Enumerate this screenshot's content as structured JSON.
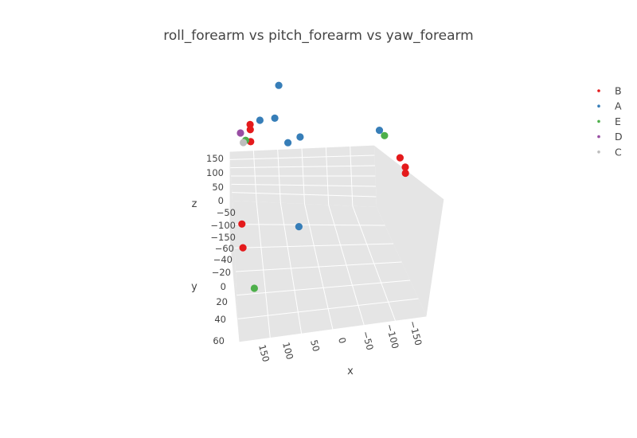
{
  "chart_data": {
    "type": "scatter3d",
    "title": "roll_forearm vs pitch_forearm vs yaw_forearm",
    "xlabel": "x",
    "ylabel": "y",
    "zlabel": "z",
    "x_ticks": [
      "150",
      "100",
      "50",
      "0",
      "−50",
      "−100",
      "−150"
    ],
    "y_ticks": [
      "−60",
      "−40",
      "−20",
      "0",
      "20",
      "40",
      "60"
    ],
    "z_ticks": [
      "150",
      "100",
      "50",
      "0",
      "−50",
      "−100",
      "−150"
    ],
    "legend": [
      {
        "name": "B",
        "color": "#e41a1c"
      },
      {
        "name": "A",
        "color": "#377eb8"
      },
      {
        "name": "E",
        "color": "#4daf4a"
      },
      {
        "name": "D",
        "color": "#984ea3"
      },
      {
        "name": "C",
        "color": "#bdbdbd"
      }
    ],
    "series": [
      {
        "name": "B",
        "color": "#e41a1c",
        "points": [
          {
            "x": 150,
            "y": -60,
            "z": 95
          },
          {
            "x": 150,
            "y": -60,
            "z": 70
          },
          {
            "x": 150,
            "y": -60,
            "z": 10
          },
          {
            "x": 175,
            "y": 10,
            "z": 20
          },
          {
            "x": 175,
            "y": 25,
            "z": -10
          },
          {
            "x": -150,
            "y": -60,
            "z": -170
          },
          {
            "x": -160,
            "y": -60,
            "z": -220
          },
          {
            "x": -160,
            "y": -60,
            "z": -250
          }
        ]
      },
      {
        "name": "A",
        "color": "#377eb8",
        "points": [
          {
            "x": 90,
            "y": -60,
            "z": 270
          },
          {
            "x": 130,
            "y": -60,
            "z": 110
          },
          {
            "x": 100,
            "y": -60,
            "z": 110
          },
          {
            "x": 75,
            "y": -60,
            "z": -20
          },
          {
            "x": 50,
            "y": -60,
            "z": 0
          },
          {
            "x": 60,
            "y": 0,
            "z": -90
          },
          {
            "x": -110,
            "y": -60,
            "z": -20
          }
        ]
      },
      {
        "name": "E",
        "color": "#4daf4a",
        "points": [
          {
            "x": 160,
            "y": -60,
            "z": 20
          },
          {
            "x": 155,
            "y": 40,
            "z": -130
          },
          {
            "x": -120,
            "y": -60,
            "z": -50
          }
        ]
      },
      {
        "name": "D",
        "color": "#984ea3",
        "points": [
          {
            "x": 170,
            "y": -60,
            "z": 60
          }
        ]
      },
      {
        "name": "C",
        "color": "#bdbdbd",
        "points": [
          {
            "x": 165,
            "y": -55,
            "z": 40
          }
        ]
      }
    ]
  }
}
